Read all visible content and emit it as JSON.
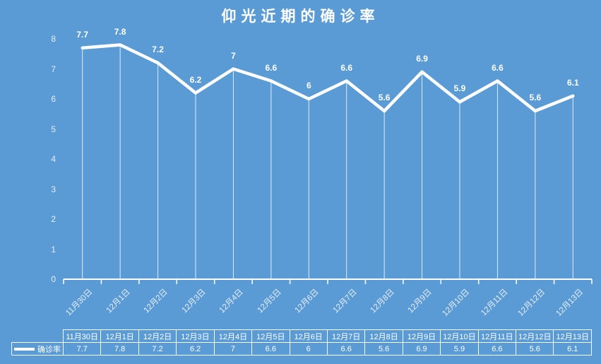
{
  "chart_data": {
    "type": "line",
    "title": "仰光近期的确诊率",
    "categories": [
      "11月30日",
      "12月1日",
      "12月2日",
      "12月3日",
      "12月4日",
      "12月5日",
      "12月6日",
      "12月7日",
      "12月8日",
      "12月9日",
      "12月10日",
      "12月11日",
      "12月12日",
      "12月13日"
    ],
    "series": [
      {
        "name": "确诊率",
        "values": [
          7.7,
          7.8,
          7.2,
          6.2,
          7,
          6.6,
          6,
          6.6,
          5.6,
          6.9,
          5.9,
          6.6,
          5.6,
          6.1
        ]
      }
    ],
    "data_labels": [
      "7.7",
      "7.8",
      "7.2",
      "6.2",
      "7",
      "6.6",
      "6",
      "6.6",
      "5.6",
      "6.9",
      "5.9",
      "6.6",
      "5.6",
      "6.1"
    ],
    "xlabel": "",
    "ylabel": "",
    "ylim": [
      0,
      8
    ],
    "yticks": [
      "0",
      "1",
      "2",
      "3",
      "4",
      "5",
      "6",
      "7",
      "8"
    ],
    "grid": false,
    "legend_position": "bottom-table",
    "data_table_shown": true,
    "drop_lines": true
  },
  "colors": {
    "background": "#5B9BD5",
    "series_line": "#FFFFFF",
    "data_label_text": "#FFFFFF",
    "axis_text": "#E6EEF8",
    "table_border": "#FFFFFF",
    "table_text": "#FFFFFF",
    "title_text": "#FFFFFF"
  }
}
